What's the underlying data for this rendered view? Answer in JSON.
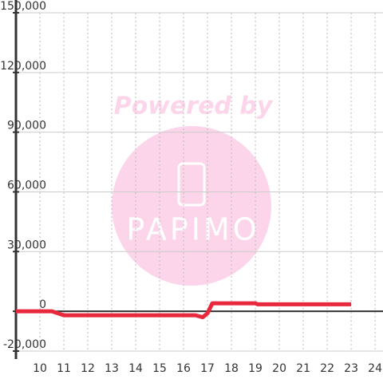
{
  "chart_data": {
    "type": "line",
    "watermark": {
      "line1": "Powered by",
      "line2": "PAPIMO",
      "color": "#fcd5ea"
    },
    "x": [
      9,
      10.5,
      11,
      16.5,
      16.8,
      17,
      17.2,
      19,
      19.1,
      23
    ],
    "series": [
      {
        "color": "#e8283c",
        "values": [
          0,
          0,
          -2000,
          -2000,
          -3000,
          -1000,
          4000,
          4000,
          3500,
          3500
        ]
      }
    ],
    "xlim": [
      9,
      24.33
    ],
    "xticks": [
      10,
      11,
      12,
      13,
      14,
      15,
      16,
      17,
      18,
      19,
      20,
      21,
      22,
      23,
      24
    ],
    "ylim": [
      -20000,
      150000
    ],
    "yticks": [
      {
        "value": -20000,
        "label": "-20,000"
      },
      0,
      {
        "value": 30000,
        "label": "30,000"
      },
      {
        "value": 60000,
        "label": "60,000"
      },
      {
        "value": 90000,
        "label": "90,000"
      },
      {
        "value": 120000,
        "label": "120,000"
      },
      {
        "value": 150000,
        "label": "150,000"
      }
    ],
    "grid": true
  }
}
